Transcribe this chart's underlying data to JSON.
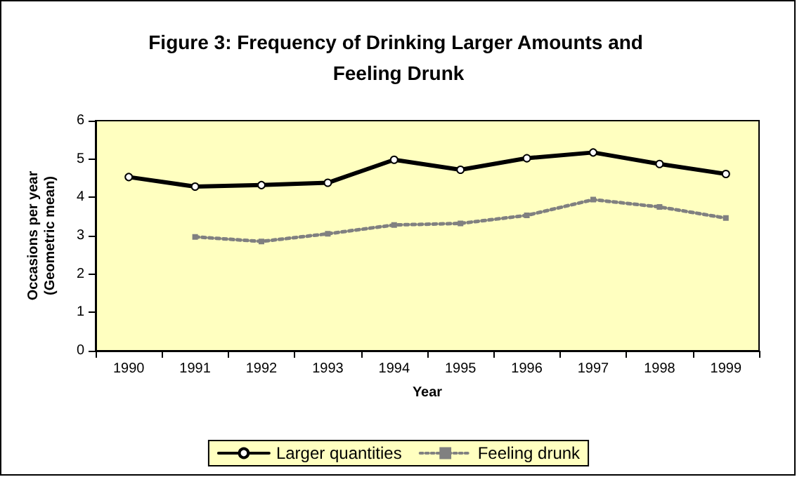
{
  "chart_data": {
    "type": "line",
    "title": "Figure 3: Frequency of Drinking Larger Amounts and Feeling Drunk",
    "xlabel": "Year",
    "ylabel": "Occasions per year\n(Geometric mean)",
    "categories": [
      "1990",
      "1991",
      "1992",
      "1993",
      "1994",
      "1995",
      "1996",
      "1997",
      "1998",
      "1999"
    ],
    "series": [
      {
        "name": "Larger quantities",
        "color": "#000000",
        "marker": "circle",
        "line_style": "solid",
        "values": [
          4.53,
          4.28,
          4.32,
          4.38,
          4.98,
          4.72,
          5.02,
          5.17,
          4.87,
          4.61
        ]
      },
      {
        "name": "Feeling drunk",
        "color": "#808080",
        "marker": "square",
        "line_style": "dotted",
        "values": [
          null,
          2.97,
          2.85,
          3.05,
          3.28,
          3.32,
          3.53,
          3.94,
          3.75,
          3.46
        ]
      }
    ],
    "ylim": [
      0,
      6
    ],
    "yticks": [
      0,
      1,
      2,
      3,
      4,
      5,
      6
    ],
    "grid": false,
    "legend": "bottom"
  }
}
